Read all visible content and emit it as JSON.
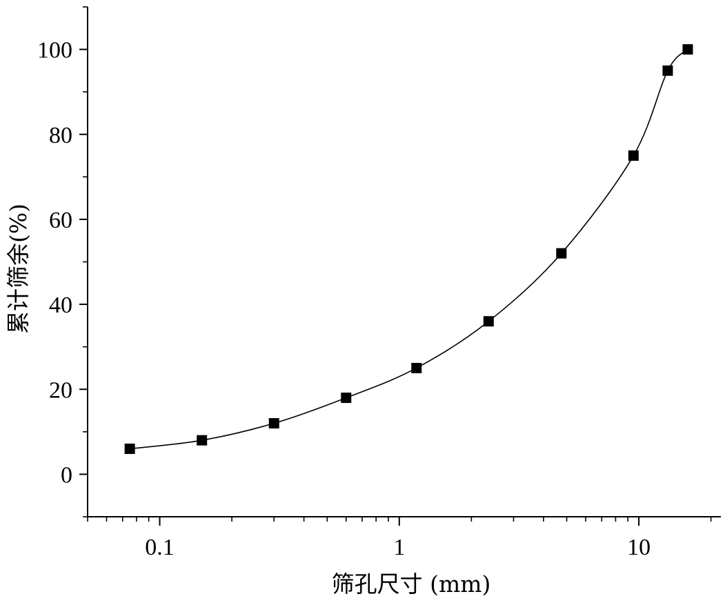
{
  "chart_data": {
    "type": "line",
    "title": "",
    "xlabel": "筛孔尺寸 (mm)",
    "ylabel": "累计筛余(%)",
    "x_scale": "log",
    "xlim": [
      0.05,
      22
    ],
    "ylim": [
      -10,
      110
    ],
    "x_ticks": [
      {
        "value": 0.1,
        "label": "0.1"
      },
      {
        "value": 1,
        "label": "1"
      },
      {
        "value": 10,
        "label": "10"
      }
    ],
    "y_ticks": [
      {
        "value": 0,
        "label": "0"
      },
      {
        "value": 20,
        "label": "20"
      },
      {
        "value": 40,
        "label": "40"
      },
      {
        "value": 60,
        "label": "60"
      },
      {
        "value": 80,
        "label": "80"
      },
      {
        "value": 100,
        "label": "100"
      }
    ],
    "grid": false,
    "legend": "none",
    "marker": "square",
    "color": "#000000",
    "series": [
      {
        "x": [
          0.075,
          0.15,
          0.3,
          0.6,
          1.18,
          2.36,
          4.75,
          9.5,
          13.2,
          16
        ],
        "y": [
          6,
          8,
          12,
          18,
          25,
          36,
          52,
          75,
          95,
          100
        ]
      }
    ]
  }
}
